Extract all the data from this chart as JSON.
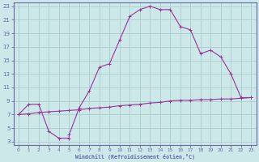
{
  "xlabel": "Windchill (Refroidissement éolien,°C)",
  "bg_color": "#cce8e8",
  "grid_color": "#aacccc",
  "line_color": "#993399",
  "spine_color": "#6666aa",
  "xlim": [
    -0.5,
    23.5
  ],
  "ylim": [
    2.5,
    23.5
  ],
  "yticks": [
    3,
    5,
    7,
    9,
    11,
    13,
    15,
    17,
    19,
    21,
    23
  ],
  "xticks": [
    0,
    1,
    2,
    3,
    4,
    5,
    6,
    7,
    8,
    9,
    10,
    11,
    12,
    13,
    14,
    15,
    16,
    17,
    18,
    19,
    20,
    21,
    22,
    23
  ],
  "curve1_x": [
    0,
    1,
    2,
    3,
    4,
    5,
    6,
    7,
    8,
    9,
    10,
    11,
    12,
    13,
    14,
    15,
    16,
    17,
    18,
    19,
    20,
    21,
    22,
    23
  ],
  "curve1_y": [
    7.0,
    7.1,
    7.3,
    7.4,
    7.5,
    7.6,
    7.7,
    7.9,
    8.0,
    8.1,
    8.3,
    8.4,
    8.5,
    8.7,
    8.8,
    9.0,
    9.1,
    9.1,
    9.2,
    9.2,
    9.3,
    9.3,
    9.4,
    9.5
  ],
  "curve2_x": [
    0,
    1,
    2,
    3,
    4,
    5,
    5,
    6,
    7,
    8,
    9,
    10,
    11,
    12,
    13,
    14,
    15,
    16,
    17,
    18,
    19,
    20,
    21,
    22,
    23
  ],
  "curve2_y": [
    7.0,
    8.5,
    8.5,
    4.5,
    3.5,
    3.5,
    4.0,
    8.0,
    10.5,
    14.0,
    14.5,
    18.0,
    21.5,
    22.5,
    23.0,
    22.5,
    22.5,
    20.0,
    19.5,
    16.0,
    16.5,
    15.5,
    13.0,
    9.5,
    9.5
  ]
}
